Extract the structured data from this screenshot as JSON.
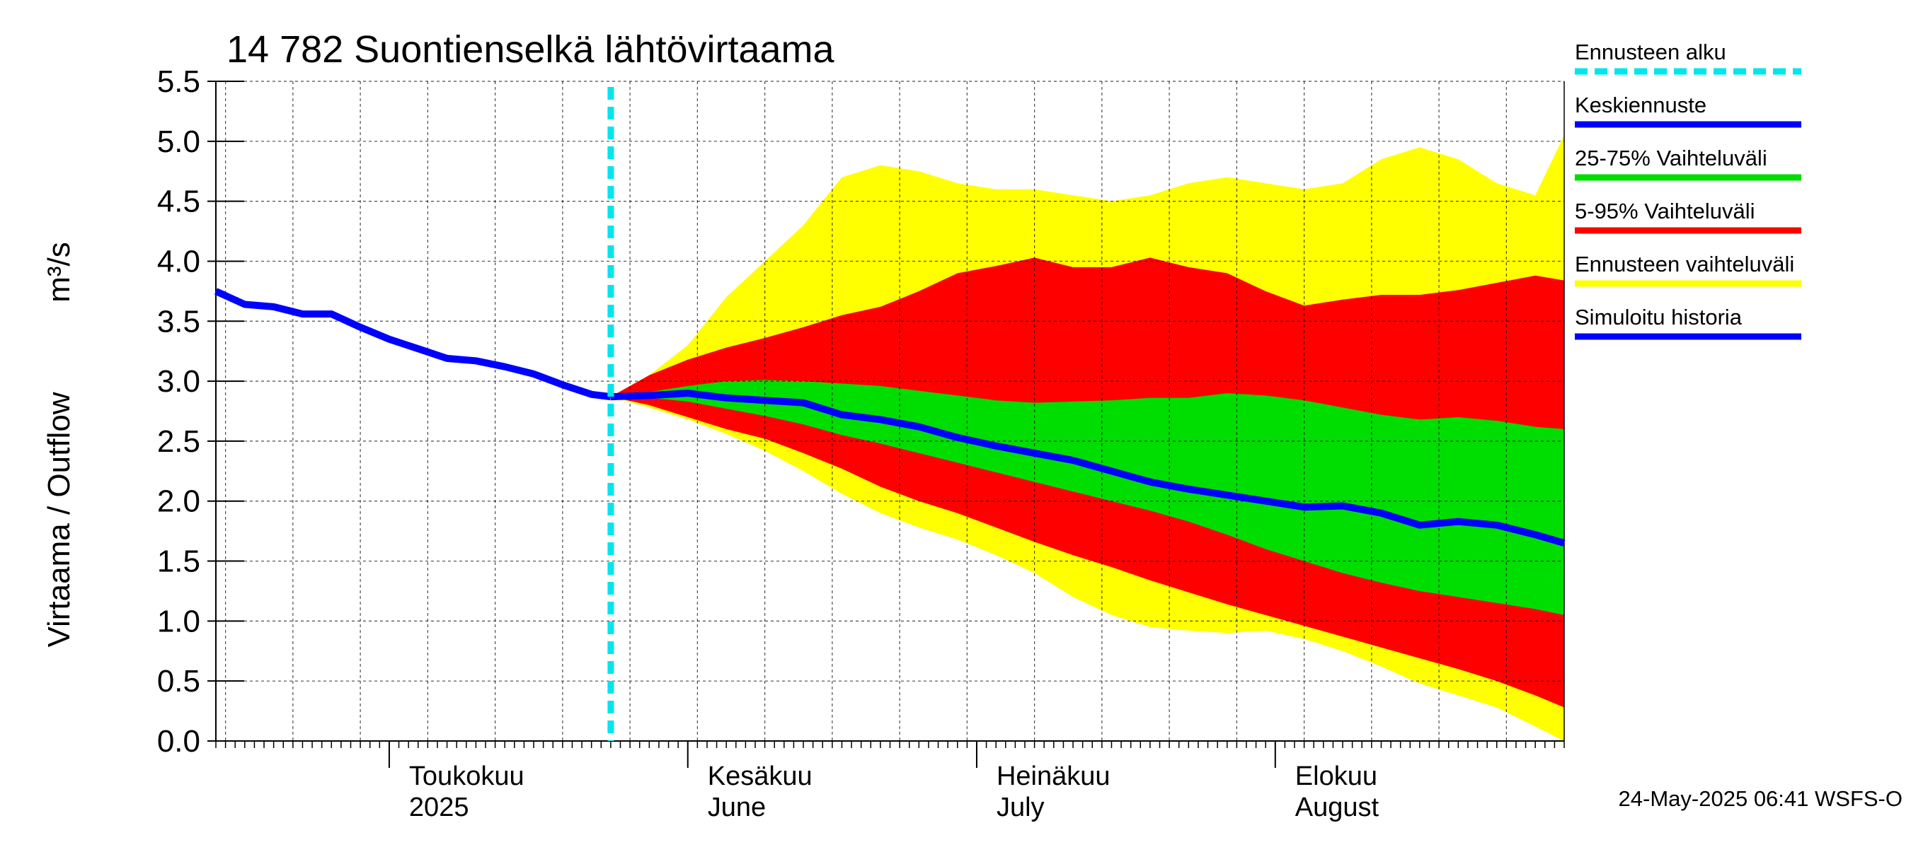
{
  "chart_data": {
    "type": "area",
    "title": "14 782 Suontienselkä lähtövirtaama",
    "ylabel_fi": "Virtaama / Outflow",
    "ylabel_unit": "m³/s",
    "ylim": [
      0.0,
      5.5
    ],
    "yticks": [
      "0.0",
      "0.5",
      "1.0",
      "1.5",
      "2.0",
      "2.5",
      "3.0",
      "3.5",
      "4.0",
      "4.5",
      "5.0",
      "5.5"
    ],
    "x_start": "2025-04-13",
    "x_end": "2025-08-31",
    "forecast_start": "2025-05-24",
    "month_labels": [
      {
        "date": "2025-05-01",
        "line1": "Toukokuu",
        "line2": "2025"
      },
      {
        "date": "2025-06-01",
        "line1": "Kesäkuu",
        "line2": "June"
      },
      {
        "date": "2025-07-01",
        "line1": "Heinäkuu",
        "line2": "July"
      },
      {
        "date": "2025-08-01",
        "line1": "Elokuu",
        "line2": "August"
      }
    ],
    "timestamp": "24-May-2025 06:41 WSFS-O",
    "legend": [
      {
        "label": "Ennusteen alku",
        "color": "#00e5ee",
        "style": "dashed"
      },
      {
        "label": "Keskiennuste",
        "color": "#0000ff",
        "style": "solid"
      },
      {
        "label": "25-75% Vaihteluväli",
        "color": "#00dd00",
        "style": "solid"
      },
      {
        "label": "5-95% Vaihteluväli",
        "color": "#ff0000",
        "style": "solid"
      },
      {
        "label": "Ennusteen vaihteluväli",
        "color": "#ffff00",
        "style": "solid"
      },
      {
        "label": "Simuloitu historia",
        "color": "#0000ff",
        "style": "solid"
      }
    ],
    "colors": {
      "forecast_start": "#00e5ee",
      "median": "#0000ff",
      "band_25_75": "#00dd00",
      "band_5_95": "#ff0000",
      "band_full": "#ffff00",
      "history": "#0000ff"
    },
    "history": {
      "x": [
        "2025-04-13",
        "2025-04-16",
        "2025-04-19",
        "2025-04-22",
        "2025-04-25",
        "2025-04-28",
        "2025-05-01",
        "2025-05-04",
        "2025-05-07",
        "2025-05-10",
        "2025-05-13",
        "2025-05-16",
        "2025-05-19",
        "2025-05-22",
        "2025-05-24"
      ],
      "y": [
        3.75,
        3.64,
        3.62,
        3.56,
        3.56,
        3.45,
        3.35,
        3.27,
        3.19,
        3.17,
        3.12,
        3.06,
        2.97,
        2.89,
        2.87
      ]
    },
    "forecast": {
      "x": [
        "2025-05-24",
        "2025-05-28",
        "2025-06-01",
        "2025-06-05",
        "2025-06-09",
        "2025-06-13",
        "2025-06-17",
        "2025-06-21",
        "2025-06-25",
        "2025-06-29",
        "2025-07-03",
        "2025-07-07",
        "2025-07-11",
        "2025-07-15",
        "2025-07-19",
        "2025-07-23",
        "2025-07-27",
        "2025-07-31",
        "2025-08-04",
        "2025-08-08",
        "2025-08-12",
        "2025-08-16",
        "2025-08-20",
        "2025-08-24",
        "2025-08-28",
        "2025-08-31"
      ],
      "median": [
        2.87,
        2.88,
        2.9,
        2.86,
        2.84,
        2.82,
        2.72,
        2.68,
        2.62,
        2.53,
        2.46,
        2.4,
        2.34,
        2.25,
        2.16,
        2.1,
        2.05,
        2.0,
        1.95,
        1.96,
        1.9,
        1.8,
        1.83,
        1.8,
        1.72,
        1.65
      ],
      "p25": [
        2.87,
        2.86,
        2.83,
        2.77,
        2.71,
        2.64,
        2.55,
        2.48,
        2.4,
        2.32,
        2.24,
        2.16,
        2.08,
        2.0,
        1.92,
        1.83,
        1.72,
        1.6,
        1.5,
        1.4,
        1.32,
        1.25,
        1.2,
        1.15,
        1.1,
        1.05
      ],
      "p75": [
        2.87,
        2.91,
        2.96,
        3.0,
        3.01,
        3.0,
        2.98,
        2.96,
        2.92,
        2.88,
        2.84,
        2.82,
        2.83,
        2.84,
        2.86,
        2.86,
        2.9,
        2.88,
        2.84,
        2.78,
        2.72,
        2.68,
        2.7,
        2.67,
        2.62,
        2.6
      ],
      "p5": [
        2.87,
        2.8,
        2.7,
        2.6,
        2.52,
        2.4,
        2.27,
        2.12,
        2.0,
        1.9,
        1.78,
        1.66,
        1.55,
        1.45,
        1.34,
        1.24,
        1.14,
        1.05,
        0.96,
        0.87,
        0.78,
        0.69,
        0.6,
        0.5,
        0.38,
        0.28
      ],
      "p95": [
        2.87,
        3.05,
        3.18,
        3.28,
        3.36,
        3.45,
        3.55,
        3.62,
        3.75,
        3.9,
        3.96,
        4.03,
        3.95,
        3.95,
        4.03,
        3.95,
        3.9,
        3.75,
        3.63,
        3.68,
        3.72,
        3.72,
        3.76,
        3.82,
        3.88,
        3.84
      ],
      "min": [
        2.87,
        2.78,
        2.68,
        2.56,
        2.42,
        2.25,
        2.06,
        1.9,
        1.78,
        1.68,
        1.55,
        1.4,
        1.2,
        1.05,
        0.95,
        0.92,
        0.9,
        0.92,
        0.85,
        0.75,
        0.62,
        0.48,
        0.38,
        0.28,
        0.12,
        0.0
      ],
      "max": [
        2.87,
        3.05,
        3.3,
        3.7,
        4.0,
        4.3,
        4.7,
        4.8,
        4.75,
        4.65,
        4.6,
        4.6,
        4.55,
        4.5,
        4.55,
        4.65,
        4.7,
        4.65,
        4.6,
        4.65,
        4.85,
        4.95,
        4.85,
        4.65,
        4.55,
        5.05
      ]
    }
  }
}
